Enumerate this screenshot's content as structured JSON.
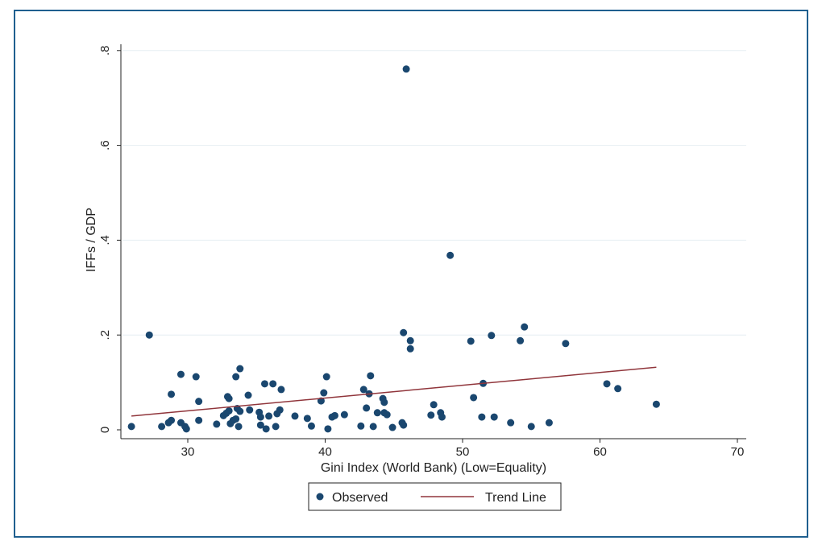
{
  "chart_data": {
    "type": "scatter",
    "title": "",
    "xlabel": "Gini Index (World Bank) (Low=Equality)",
    "ylabel": "IFFs / GDP",
    "xlim": [
      25,
      71
    ],
    "ylim": [
      0,
      0.8
    ],
    "xticks": [
      30,
      40,
      50,
      60,
      70
    ],
    "xtick_labels": [
      "30",
      "40",
      "50",
      "60",
      "70"
    ],
    "yticks": [
      0,
      0.2,
      0.4,
      0.6,
      0.8
    ],
    "ytick_labels": [
      "0",
      ".2",
      ".4",
      ".6",
      ".8"
    ],
    "grid": true,
    "legend_position": "bottom",
    "colors": {
      "points": "#1a476f",
      "trend": "#90353b",
      "frame": "#1f5f8f"
    },
    "series": [
      {
        "name": "Observed",
        "kind": "scatter",
        "points": [
          [
            25.9,
            0.007
          ],
          [
            27.2,
            0.2
          ],
          [
            28.1,
            0.007
          ],
          [
            28.6,
            0.015
          ],
          [
            28.8,
            0.02
          ],
          [
            28.8,
            0.075
          ],
          [
            29.5,
            0.117
          ],
          [
            29.5,
            0.015
          ],
          [
            29.8,
            0.007
          ],
          [
            29.9,
            0.002
          ],
          [
            30.6,
            0.112
          ],
          [
            30.8,
            0.06
          ],
          [
            30.8,
            0.02
          ],
          [
            32.1,
            0.012
          ],
          [
            32.6,
            0.03
          ],
          [
            32.8,
            0.035
          ],
          [
            32.9,
            0.07
          ],
          [
            33.0,
            0.066
          ],
          [
            33.0,
            0.04
          ],
          [
            33.1,
            0.013
          ],
          [
            33.3,
            0.02
          ],
          [
            33.5,
            0.023
          ],
          [
            33.5,
            0.112
          ],
          [
            33.6,
            0.045
          ],
          [
            33.7,
            0.007
          ],
          [
            33.8,
            0.039
          ],
          [
            33.8,
            0.129
          ],
          [
            34.4,
            0.073
          ],
          [
            34.5,
            0.042
          ],
          [
            35.2,
            0.037
          ],
          [
            35.3,
            0.027
          ],
          [
            35.3,
            0.01
          ],
          [
            35.6,
            0.097
          ],
          [
            35.7,
            0.002
          ],
          [
            35.9,
            0.029
          ],
          [
            36.2,
            0.097
          ],
          [
            36.4,
            0.007
          ],
          [
            36.5,
            0.034
          ],
          [
            36.7,
            0.042
          ],
          [
            36.8,
            0.085
          ],
          [
            37.8,
            0.029
          ],
          [
            38.7,
            0.024
          ],
          [
            39.0,
            0.008
          ],
          [
            39.7,
            0.061
          ],
          [
            39.9,
            0.078
          ],
          [
            40.1,
            0.112
          ],
          [
            40.2,
            0.002
          ],
          [
            40.5,
            0.027
          ],
          [
            40.7,
            0.03
          ],
          [
            41.4,
            0.032
          ],
          [
            42.6,
            0.008
          ],
          [
            42.8,
            0.085
          ],
          [
            43.0,
            0.046
          ],
          [
            43.2,
            0.076
          ],
          [
            43.3,
            0.114
          ],
          [
            43.5,
            0.007
          ],
          [
            43.8,
            0.036
          ],
          [
            44.2,
            0.066
          ],
          [
            44.3,
            0.058
          ],
          [
            44.3,
            0.036
          ],
          [
            44.5,
            0.032
          ],
          [
            44.9,
            0.005
          ],
          [
            45.6,
            0.015
          ],
          [
            45.7,
            0.205
          ],
          [
            45.7,
            0.01
          ],
          [
            45.9,
            0.761
          ],
          [
            46.2,
            0.188
          ],
          [
            46.2,
            0.171
          ],
          [
            47.7,
            0.031
          ],
          [
            47.9,
            0.053
          ],
          [
            48.4,
            0.036
          ],
          [
            48.5,
            0.027
          ],
          [
            49.1,
            0.368
          ],
          [
            50.6,
            0.187
          ],
          [
            50.8,
            0.068
          ],
          [
            51.4,
            0.027
          ],
          [
            51.5,
            0.098
          ],
          [
            52.1,
            0.199
          ],
          [
            52.3,
            0.027
          ],
          [
            53.5,
            0.015
          ],
          [
            54.2,
            0.188
          ],
          [
            54.5,
            0.217
          ],
          [
            55.0,
            0.007
          ],
          [
            56.3,
            0.015
          ],
          [
            57.5,
            0.182
          ],
          [
            60.5,
            0.097
          ],
          [
            61.3,
            0.087
          ],
          [
            64.1,
            0.054
          ]
        ]
      },
      {
        "name": "Trend Line",
        "kind": "line",
        "points": [
          [
            25.9,
            0.029
          ],
          [
            64.1,
            0.132
          ]
        ]
      }
    ]
  }
}
